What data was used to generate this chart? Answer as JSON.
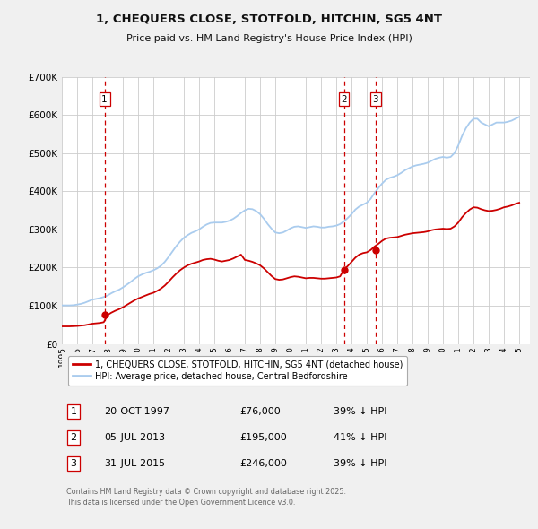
{
  "title": "1, CHEQUERS CLOSE, STOTFOLD, HITCHIN, SG5 4NT",
  "subtitle": "Price paid vs. HM Land Registry's House Price Index (HPI)",
  "bg_color": "#f0f0f0",
  "plot_bg_color": "#ffffff",
  "ylim": [
    0,
    700000
  ],
  "yticks": [
    0,
    100000,
    200000,
    300000,
    400000,
    500000,
    600000,
    700000
  ],
  "ytick_labels": [
    "£0",
    "£100K",
    "£200K",
    "£300K",
    "£400K",
    "£500K",
    "£600K",
    "£700K"
  ],
  "xlim_start": 1995.0,
  "xlim_end": 2025.7,
  "hpi_color": "#aaccee",
  "price_color": "#cc0000",
  "vline_color": "#cc0000",
  "sale_dates": [
    1997.8,
    2013.5,
    2015.58
  ],
  "sale_prices": [
    76000,
    195000,
    246000
  ],
  "sale_labels": [
    "1",
    "2",
    "3"
  ],
  "legend_label_red": "1, CHEQUERS CLOSE, STOTFOLD, HITCHIN, SG5 4NT (detached house)",
  "legend_label_blue": "HPI: Average price, detached house, Central Bedfordshire",
  "table_entries": [
    {
      "num": "1",
      "date": "20-OCT-1997",
      "price": "£76,000",
      "pct": "39% ↓ HPI"
    },
    {
      "num": "2",
      "date": "05-JUL-2013",
      "price": "£195,000",
      "pct": "41% ↓ HPI"
    },
    {
      "num": "3",
      "date": "31-JUL-2015",
      "price": "£246,000",
      "pct": "39% ↓ HPI"
    }
  ],
  "footnote": "Contains HM Land Registry data © Crown copyright and database right 2025.\nThis data is licensed under the Open Government Licence v3.0.",
  "hpi_data_x": [
    1995.0,
    1995.25,
    1995.5,
    1995.75,
    1996.0,
    1996.25,
    1996.5,
    1996.75,
    1997.0,
    1997.25,
    1997.5,
    1997.75,
    1998.0,
    1998.25,
    1998.5,
    1998.75,
    1999.0,
    1999.25,
    1999.5,
    1999.75,
    2000.0,
    2000.25,
    2000.5,
    2000.75,
    2001.0,
    2001.25,
    2001.5,
    2001.75,
    2002.0,
    2002.25,
    2002.5,
    2002.75,
    2003.0,
    2003.25,
    2003.5,
    2003.75,
    2004.0,
    2004.25,
    2004.5,
    2004.75,
    2005.0,
    2005.25,
    2005.5,
    2005.75,
    2006.0,
    2006.25,
    2006.5,
    2006.75,
    2007.0,
    2007.25,
    2007.5,
    2007.75,
    2008.0,
    2008.25,
    2008.5,
    2008.75,
    2009.0,
    2009.25,
    2009.5,
    2009.75,
    2010.0,
    2010.25,
    2010.5,
    2010.75,
    2011.0,
    2011.25,
    2011.5,
    2011.75,
    2012.0,
    2012.25,
    2012.5,
    2012.75,
    2013.0,
    2013.25,
    2013.5,
    2013.75,
    2014.0,
    2014.25,
    2014.5,
    2014.75,
    2015.0,
    2015.25,
    2015.5,
    2015.75,
    2016.0,
    2016.25,
    2016.5,
    2016.75,
    2017.0,
    2017.25,
    2017.5,
    2017.75,
    2018.0,
    2018.25,
    2018.5,
    2018.75,
    2019.0,
    2019.25,
    2019.5,
    2019.75,
    2020.0,
    2020.25,
    2020.5,
    2020.75,
    2021.0,
    2021.25,
    2021.5,
    2021.75,
    2022.0,
    2022.25,
    2022.5,
    2022.75,
    2023.0,
    2023.25,
    2023.5,
    2023.75,
    2024.0,
    2024.25,
    2024.5,
    2024.75,
    2025.0
  ],
  "hpi_data_y": [
    101000,
    101000,
    101000,
    101500,
    103000,
    105000,
    108000,
    112000,
    116000,
    118000,
    120000,
    123000,
    127000,
    133000,
    138000,
    142000,
    148000,
    155000,
    162000,
    170000,
    177000,
    182000,
    186000,
    189000,
    193000,
    198000,
    205000,
    215000,
    228000,
    242000,
    256000,
    268000,
    278000,
    285000,
    291000,
    295000,
    300000,
    307000,
    313000,
    317000,
    318000,
    318000,
    318000,
    320000,
    323000,
    328000,
    335000,
    343000,
    350000,
    354000,
    353000,
    348000,
    340000,
    328000,
    314000,
    302000,
    292000,
    290000,
    292000,
    297000,
    303000,
    307000,
    308000,
    306000,
    304000,
    306000,
    308000,
    307000,
    305000,
    305000,
    307000,
    308000,
    310000,
    314000,
    321000,
    330000,
    340000,
    352000,
    360000,
    365000,
    370000,
    380000,
    395000,
    408000,
    420000,
    430000,
    435000,
    438000,
    442000,
    448000,
    455000,
    460000,
    465000,
    468000,
    470000,
    472000,
    475000,
    480000,
    485000,
    488000,
    490000,
    488000,
    490000,
    500000,
    520000,
    545000,
    565000,
    580000,
    590000,
    590000,
    580000,
    575000,
    570000,
    575000,
    580000,
    580000,
    580000,
    582000,
    585000,
    590000,
    595000
  ],
  "price_data_x": [
    1995.0,
    1995.25,
    1995.5,
    1995.75,
    1996.0,
    1996.25,
    1996.5,
    1996.75,
    1997.0,
    1997.25,
    1997.5,
    1997.75,
    1998.0,
    1998.25,
    1998.5,
    1998.75,
    1999.0,
    1999.25,
    1999.5,
    1999.75,
    2000.0,
    2000.25,
    2000.5,
    2000.75,
    2001.0,
    2001.25,
    2001.5,
    2001.75,
    2002.0,
    2002.25,
    2002.5,
    2002.75,
    2003.0,
    2003.25,
    2003.5,
    2003.75,
    2004.0,
    2004.25,
    2004.5,
    2004.75,
    2005.0,
    2005.25,
    2005.5,
    2005.75,
    2006.0,
    2006.25,
    2006.5,
    2006.75,
    2007.0,
    2007.25,
    2007.5,
    2007.75,
    2008.0,
    2008.25,
    2008.5,
    2008.75,
    2009.0,
    2009.25,
    2009.5,
    2009.75,
    2010.0,
    2010.25,
    2010.5,
    2010.75,
    2011.0,
    2011.25,
    2011.5,
    2011.75,
    2012.0,
    2012.25,
    2012.5,
    2012.75,
    2013.0,
    2013.25,
    2013.5,
    2013.75,
    2014.0,
    2014.25,
    2014.5,
    2014.75,
    2015.0,
    2015.25,
    2015.5,
    2015.75,
    2016.0,
    2016.25,
    2016.5,
    2016.75,
    2017.0,
    2017.25,
    2017.5,
    2017.75,
    2018.0,
    2018.25,
    2018.5,
    2018.75,
    2019.0,
    2019.25,
    2019.5,
    2019.75,
    2020.0,
    2020.25,
    2020.5,
    2020.75,
    2021.0,
    2021.25,
    2021.5,
    2021.75,
    2022.0,
    2022.25,
    2022.5,
    2022.75,
    2023.0,
    2023.25,
    2023.5,
    2023.75,
    2024.0,
    2024.25,
    2024.5,
    2024.75,
    2025.0
  ],
  "price_data_y": [
    46000,
    46000,
    46000,
    46500,
    47000,
    48000,
    49000,
    51000,
    53000,
    54000,
    55000,
    57000,
    76000,
    82000,
    87000,
    91000,
    96000,
    102000,
    108000,
    114000,
    119000,
    123000,
    127000,
    131000,
    134000,
    139000,
    145000,
    153000,
    163000,
    174000,
    184000,
    193000,
    200000,
    206000,
    210000,
    213000,
    216000,
    220000,
    222000,
    223000,
    221000,
    218000,
    216000,
    218000,
    220000,
    224000,
    229000,
    234000,
    220000,
    218000,
    215000,
    211000,
    206000,
    198000,
    188000,
    178000,
    170000,
    168000,
    169000,
    172000,
    175000,
    177000,
    176000,
    174000,
    172000,
    173000,
    173000,
    172000,
    171000,
    171000,
    172000,
    173000,
    174000,
    177000,
    195000,
    204000,
    215000,
    226000,
    234000,
    238000,
    240000,
    246000,
    255000,
    262000,
    270000,
    276000,
    278000,
    279000,
    280000,
    283000,
    286000,
    288000,
    290000,
    291000,
    292000,
    293000,
    295000,
    298000,
    300000,
    301000,
    302000,
    301000,
    302000,
    308000,
    318000,
    332000,
    343000,
    352000,
    358000,
    357000,
    353000,
    350000,
    348000,
    349000,
    351000,
    354000,
    358000,
    360000,
    363000,
    367000,
    370000
  ]
}
